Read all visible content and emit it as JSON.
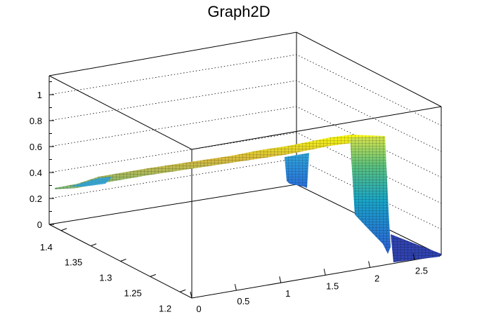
{
  "chart_data": {
    "type": "surface",
    "title": "Graph2D",
    "xlabel": "",
    "ylabel": "",
    "zlabel": "",
    "xlim": [
      0,
      2.8
    ],
    "ylim": [
      1.18,
      1.42
    ],
    "zlim": [
      0,
      1.1
    ],
    "grid": "dotted horizontal lines on back walls",
    "colormap": "parula (blue-cyan-green-yellow)",
    "x_ticks": [
      "0",
      "0.5",
      "1",
      "1.5",
      "2",
      "2.5"
    ],
    "y_ticks": [
      "1.2",
      "1.25",
      "1.3",
      "1.35",
      "1.4"
    ],
    "z_ticks": [
      "0",
      "0.2",
      "0.4",
      "0.6",
      "0.8",
      "1"
    ],
    "ridge_profile": {
      "description": "height of the ridge along the back edge (y = 1.4)",
      "x": [
        0,
        0.25,
        0.5,
        0.75,
        1.0,
        1.25,
        1.5,
        1.75,
        2.0,
        2.25,
        2.5
      ],
      "z": [
        0.28,
        0.36,
        0.4,
        0.45,
        0.5,
        0.58,
        0.6,
        0.61,
        0.64,
        0.65,
        0.65
      ]
    },
    "features": [
      {
        "name": "notch",
        "x_range": [
          0.9,
          1.0
        ],
        "z_min": 0.3,
        "z_max": 0.6
      },
      {
        "name": "cliff",
        "x": 2.25,
        "z_top": 0.65,
        "z_bottom": 0.0
      },
      {
        "name": "floor",
        "x_range": [
          2.3,
          2.8
        ],
        "z": 0.0
      }
    ]
  },
  "colors": {
    "axis": "#000000",
    "grid": "#000000",
    "mesh": "#000000",
    "parula_low": "#352a87",
    "parula_mid": "#0fadc4",
    "parula_high": "#f9fb0e"
  }
}
